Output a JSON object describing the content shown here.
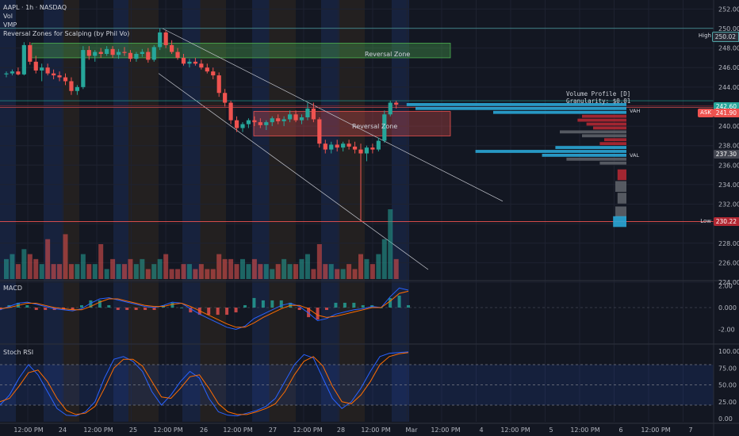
{
  "legend": {
    "symbol": "AAPL · 1h · NASDAQ",
    "vol": "Vol",
    "vmp": "VMP",
    "indicator": "Reversal Zones for Scalping (by Phil Vo)"
  },
  "panes": {
    "macd": "MACD",
    "stoch": "Stoch RSI"
  },
  "price_axis": [
    "252.00",
    "250.00",
    "248.00",
    "246.00",
    "244.00",
    "242.00",
    "240.00",
    "238.00",
    "236.00",
    "234.00",
    "232.00",
    "230.00",
    "228.00",
    "226.00",
    "224.00"
  ],
  "macd_axis": [
    "2.00",
    "0.000",
    "-2.00"
  ],
  "stoch_axis": [
    "100.00",
    "75.00",
    "50.00",
    "25.00",
    "0.00"
  ],
  "time_axis": [
    "12:00 PM",
    "24",
    "12:00 PM",
    "25",
    "12:00 PM",
    "26",
    "12:00 PM",
    "27",
    "12:00 PM",
    "28",
    "12:00 PM",
    "Mar",
    "12:00 PM",
    "4",
    "12:00 PM",
    "5",
    "12:00 PM",
    "6",
    "12:00 PM",
    "7"
  ],
  "tags": {
    "high_label": "High",
    "high_value": "250.02",
    "low_label": "Low",
    "low_value": "230.22",
    "ask_label": "ASK",
    "ask_value": "241.90",
    "price_value": "242.60",
    "val_value": "237.30",
    "vah": "VAH",
    "val": "VAL"
  },
  "volume_profile": {
    "title": "Volume Profile [D]",
    "granularity": "Granularity: $0.01"
  },
  "zones": {
    "upper": "Reversal Zone",
    "lower": "Reversal Zone"
  },
  "colors": {
    "up": "#26a69a",
    "down": "#ef5350",
    "background": "#131722",
    "session_blue": "#1a2747",
    "session_brown": "#2a2420",
    "profile_blue": "#2aa6d6",
    "profile_red": "#b22833",
    "profile_gray": "#5d6068"
  },
  "chart_data": {
    "type": "candlestick",
    "symbol": "AAPL",
    "interval": "1h",
    "exchange": "NASDAQ",
    "candles": [
      [
        245.3,
        245.6,
        245.0,
        245.4
      ],
      [
        245.4,
        245.8,
        245.2,
        245.6
      ],
      [
        245.6,
        246.0,
        245.2,
        245.3
      ],
      [
        245.3,
        248.6,
        245.2,
        248.3
      ],
      [
        248.3,
        248.6,
        246.3,
        246.6
      ],
      [
        246.6,
        247.2,
        245.4,
        245.7
      ],
      [
        245.7,
        246.4,
        244.6,
        246.0
      ],
      [
        246.0,
        246.4,
        245.2,
        245.4
      ],
      [
        245.4,
        245.8,
        244.8,
        245.2
      ],
      [
        245.2,
        245.6,
        244.6,
        245.0
      ],
      [
        245.0,
        245.4,
        244.2,
        244.6
      ],
      [
        244.6,
        245.0,
        243.2,
        243.6
      ],
      [
        243.6,
        244.2,
        243.2,
        244.0
      ],
      [
        244.0,
        248.2,
        243.8,
        247.8
      ],
      [
        247.8,
        248.2,
        246.8,
        247.2
      ],
      [
        247.2,
        247.8,
        246.6,
        247.6
      ],
      [
        247.6,
        248.0,
        247.0,
        247.4
      ],
      [
        247.4,
        248.2,
        247.2,
        247.9
      ],
      [
        247.9,
        248.2,
        247.0,
        247.3
      ],
      [
        247.3,
        247.9,
        246.9,
        247.6
      ],
      [
        247.6,
        248.1,
        247.2,
        247.5
      ],
      [
        247.5,
        247.8,
        246.6,
        246.9
      ],
      [
        246.9,
        247.6,
        246.6,
        247.4
      ],
      [
        247.4,
        247.9,
        247.1,
        247.6
      ],
      [
        247.6,
        248.0,
        246.5,
        246.8
      ],
      [
        246.8,
        248.3,
        246.6,
        248.1
      ],
      [
        248.1,
        250.0,
        247.8,
        249.6
      ],
      [
        249.6,
        249.8,
        248.0,
        248.3
      ],
      [
        248.3,
        248.8,
        247.4,
        247.6
      ],
      [
        247.6,
        248.0,
        246.8,
        247.0
      ],
      [
        247.0,
        247.4,
        246.2,
        246.4
      ],
      [
        246.4,
        246.9,
        246.0,
        246.6
      ],
      [
        246.6,
        247.0,
        246.2,
        246.4
      ],
      [
        246.4,
        246.8,
        245.8,
        246.0
      ],
      [
        246.0,
        246.4,
        245.4,
        245.6
      ],
      [
        245.6,
        246.0,
        244.8,
        245.2
      ],
      [
        245.2,
        245.5,
        243.0,
        243.4
      ],
      [
        243.4,
        243.8,
        242.0,
        242.4
      ],
      [
        242.4,
        242.6,
        240.2,
        240.6
      ],
      [
        240.6,
        241.0,
        239.4,
        239.8
      ],
      [
        239.8,
        240.4,
        239.4,
        240.2
      ],
      [
        240.2,
        240.8,
        239.8,
        240.6
      ],
      [
        240.6,
        241.0,
        240.0,
        240.4
      ],
      [
        240.4,
        240.8,
        239.8,
        240.1
      ],
      [
        240.1,
        240.6,
        239.6,
        240.4
      ],
      [
        240.4,
        241.0,
        240.0,
        240.8
      ],
      [
        240.8,
        241.2,
        240.2,
        240.5
      ],
      [
        240.5,
        241.0,
        240.0,
        240.7
      ],
      [
        240.7,
        241.6,
        240.4,
        241.2
      ],
      [
        241.2,
        241.6,
        240.4,
        240.6
      ],
      [
        240.6,
        241.2,
        240.2,
        240.9
      ],
      [
        240.9,
        242.4,
        240.6,
        241.8
      ],
      [
        241.8,
        242.4,
        240.4,
        240.7
      ],
      [
        240.7,
        240.9,
        237.8,
        238.2
      ],
      [
        238.2,
        238.6,
        237.2,
        237.6
      ],
      [
        237.6,
        238.4,
        237.2,
        238.1
      ],
      [
        238.1,
        238.6,
        237.4,
        237.8
      ],
      [
        237.8,
        238.4,
        237.4,
        238.2
      ],
      [
        238.2,
        238.6,
        237.6,
        237.9
      ],
      [
        237.9,
        238.4,
        237.2,
        237.6
      ],
      [
        237.6,
        238.2,
        230.2,
        237.2
      ],
      [
        237.2,
        238.0,
        236.4,
        237.8
      ],
      [
        237.8,
        238.2,
        237.2,
        237.6
      ],
      [
        237.6,
        238.8,
        237.4,
        238.5
      ],
      [
        238.5,
        241.6,
        238.3,
        241.2
      ],
      [
        241.2,
        242.6,
        241.0,
        242.4
      ],
      [
        242.4,
        242.6,
        241.8,
        242.2
      ]
    ],
    "volume": [
      4,
      5,
      3,
      6,
      5,
      4,
      3,
      8,
      3,
      3,
      9,
      3,
      3,
      5,
      3,
      3,
      7,
      2,
      4,
      3,
      3,
      4,
      3,
      4,
      2,
      3,
      4,
      5,
      2,
      2,
      3,
      3,
      2,
      3,
      2,
      2,
      5,
      4,
      4,
      3,
      4,
      3,
      4,
      3,
      3,
      2,
      3,
      4,
      3,
      3,
      4,
      5,
      2,
      7,
      3,
      3,
      2,
      2,
      3,
      2,
      5,
      4,
      3,
      5,
      8,
      14,
      4
    ],
    "lines": {
      "high": 250.02,
      "low": 230.22,
      "ask": 241.9,
      "last": 242.6,
      "val": 237.3
    },
    "reversal_zones": [
      {
        "label": "Reversal Zone",
        "top": 248.5,
        "bottom": 247.0
      },
      {
        "label": "Reversal Zone",
        "top": 241.5,
        "bottom": 239.0
      }
    ],
    "macd": {
      "ylim": [
        -3.2,
        2.4
      ],
      "macd": [
        -0.2,
        0.1,
        0.4,
        0.5,
        0.3,
        0.1,
        -0.1,
        -0.2,
        -0.3,
        -0.1,
        0.4,
        0.8,
        0.9,
        0.7,
        0.5,
        0.3,
        0.1,
        0.0,
        0.2,
        0.5,
        0.4,
        -0.1,
        -0.6,
        -1.0,
        -1.4,
        -1.8,
        -2.0,
        -1.7,
        -1.0,
        -0.6,
        -0.2,
        0.2,
        0.4,
        0.1,
        -0.5,
        -1.2,
        -1.0,
        -0.6,
        -0.4,
        -0.2,
        -0.1,
        0.1,
        0.0,
        1.0,
        1.8,
        1.6
      ],
      "signal": [
        -0.1,
        0.0,
        0.2,
        0.4,
        0.4,
        0.2,
        0.0,
        -0.1,
        -0.2,
        -0.2,
        0.1,
        0.5,
        0.8,
        0.8,
        0.6,
        0.4,
        0.2,
        0.1,
        0.1,
        0.3,
        0.4,
        0.1,
        -0.3,
        -0.7,
        -1.1,
        -1.5,
        -1.8,
        -1.8,
        -1.4,
        -0.9,
        -0.5,
        -0.1,
        0.2,
        0.2,
        -0.1,
        -0.7,
        -0.9,
        -0.8,
        -0.6,
        -0.4,
        -0.2,
        0.0,
        0.0,
        0.6,
        1.3,
        1.5
      ]
    },
    "stoch_rsi": {
      "ylim": [
        0,
        100
      ],
      "k": [
        20,
        35,
        60,
        80,
        65,
        40,
        15,
        5,
        4,
        10,
        25,
        60,
        88,
        92,
        85,
        70,
        40,
        20,
        35,
        55,
        70,
        60,
        30,
        10,
        5,
        4,
        8,
        12,
        18,
        30,
        55,
        80,
        95,
        90,
        60,
        30,
        15,
        25,
        45,
        70,
        92,
        97,
        98,
        99
      ],
      "d": [
        25,
        30,
        48,
        68,
        72,
        55,
        30,
        12,
        6,
        8,
        18,
        45,
        75,
        88,
        88,
        78,
        55,
        32,
        30,
        45,
        62,
        65,
        45,
        22,
        10,
        6,
        6,
        10,
        15,
        22,
        40,
        65,
        85,
        92,
        78,
        48,
        25,
        22,
        35,
        55,
        80,
        92,
        96,
        98
      ]
    }
  }
}
